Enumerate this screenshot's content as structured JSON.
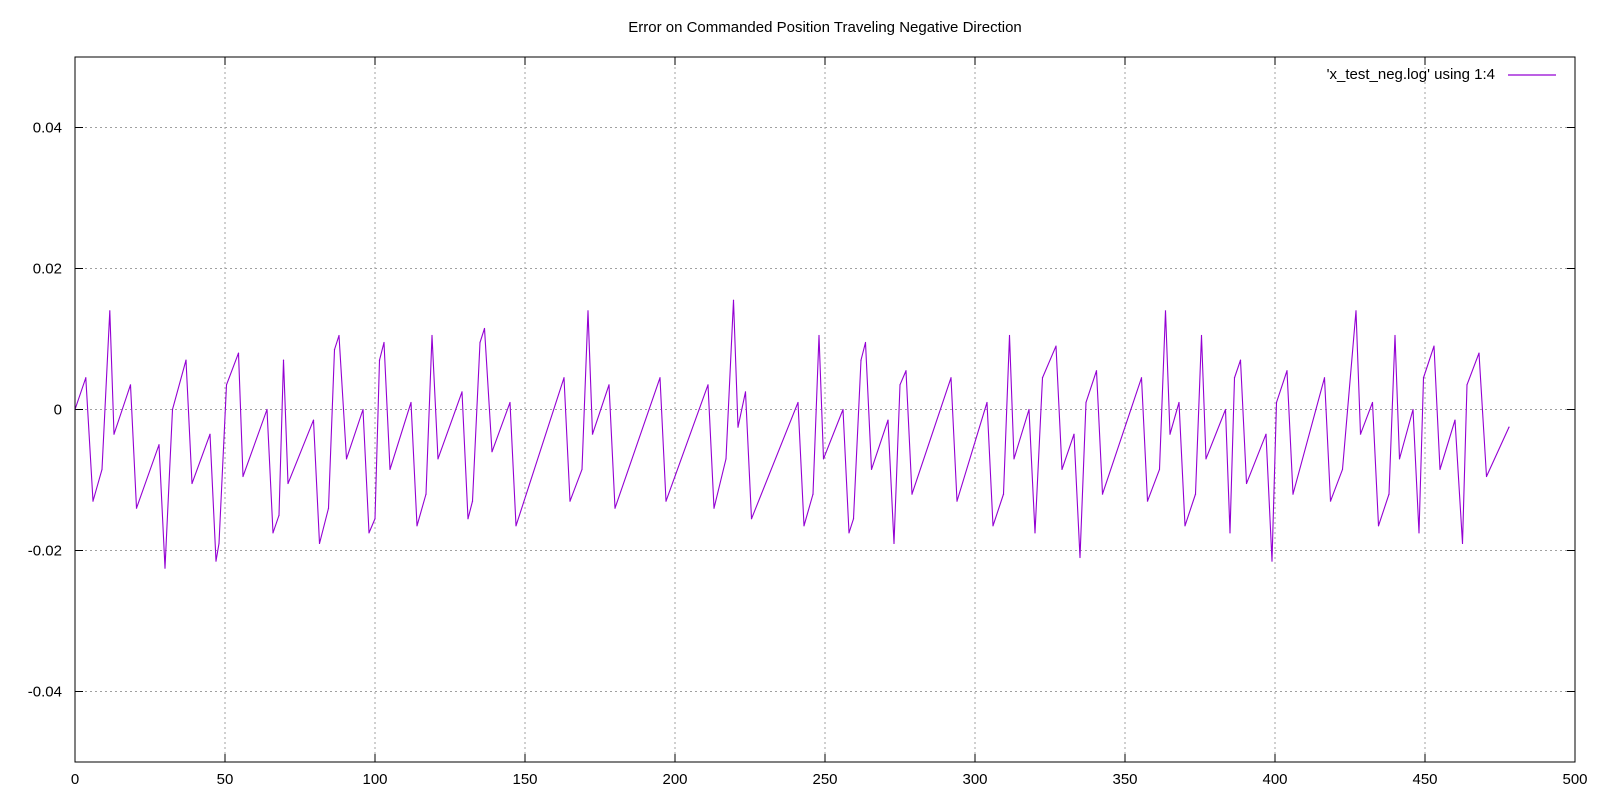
{
  "chart_data": {
    "type": "line",
    "title": "Error on Commanded Position Traveling Negative Direction",
    "xlabel": "",
    "ylabel": "",
    "xlim": [
      0,
      500
    ],
    "ylim": [
      -0.05,
      0.05
    ],
    "x_ticks": [
      0,
      50,
      100,
      150,
      200,
      250,
      300,
      350,
      400,
      450,
      500
    ],
    "x_tick_labels": [
      "0",
      "50",
      "100",
      "150",
      "200",
      "250",
      "300",
      "350",
      "400",
      "450",
      "500"
    ],
    "y_ticks": [
      -0.04,
      -0.02,
      0,
      0.02,
      0.04
    ],
    "y_tick_labels": [
      "-0.04",
      "-0.02",
      "0",
      "0.02",
      "0.04"
    ],
    "grid": true,
    "legend_position": "top-right",
    "series": [
      {
        "name": "'x_test_neg.log' using 1:4",
        "color": "#9400d3",
        "points": [
          [
            0,
            0.0
          ],
          [
            3.6,
            0.0045
          ],
          [
            6,
            -0.013
          ],
          [
            9,
            -0.0085
          ],
          [
            11.6,
            0.014
          ],
          [
            13,
            -0.0035
          ],
          [
            18.5,
            0.0035
          ],
          [
            20.5,
            -0.014
          ],
          [
            28,
            -0.005
          ],
          [
            30,
            -0.0225
          ],
          [
            32.5,
            0.0
          ],
          [
            37,
            0.007
          ],
          [
            39,
            -0.0105
          ],
          [
            45,
            -0.0035
          ],
          [
            47,
            -0.0215
          ],
          [
            48,
            -0.019
          ],
          [
            50.5,
            0.0035
          ],
          [
            54.5,
            0.008
          ],
          [
            56,
            -0.0095
          ],
          [
            64,
            0.0
          ],
          [
            66,
            -0.0175
          ],
          [
            68,
            -0.015
          ],
          [
            69.5,
            0.007
          ],
          [
            71,
            -0.0105
          ],
          [
            79.5,
            -0.0015
          ],
          [
            81.5,
            -0.019
          ],
          [
            84.5,
            -0.014
          ],
          [
            86.5,
            0.0085
          ],
          [
            88,
            0.0105
          ],
          [
            90.5,
            -0.007
          ],
          [
            96,
            0.0
          ],
          [
            98,
            -0.0175
          ],
          [
            100,
            -0.0155
          ],
          [
            101.5,
            0.007
          ],
          [
            103,
            0.0095
          ],
          [
            105,
            -0.0085
          ],
          [
            112,
            0.001
          ],
          [
            114,
            -0.0165
          ],
          [
            117,
            -0.012
          ],
          [
            119,
            0.0105
          ],
          [
            121,
            -0.007
          ],
          [
            129,
            0.0025
          ],
          [
            131,
            -0.0155
          ],
          [
            132.5,
            -0.013
          ],
          [
            135,
            0.0095
          ],
          [
            136.5,
            0.0115
          ],
          [
            139,
            -0.006
          ],
          [
            145,
            0.001
          ],
          [
            147,
            -0.0165
          ],
          [
            163,
            0.0045
          ],
          [
            165,
            -0.013
          ],
          [
            169,
            -0.0085
          ],
          [
            171,
            0.014
          ],
          [
            172.5,
            -0.0035
          ],
          [
            178,
            0.0035
          ],
          [
            180,
            -0.014
          ],
          [
            195,
            0.0045
          ],
          [
            197,
            -0.013
          ],
          [
            211,
            0.0035
          ],
          [
            213,
            -0.014
          ],
          [
            217,
            -0.007
          ],
          [
            219.5,
            0.0155
          ],
          [
            221,
            -0.0025
          ],
          [
            223.5,
            0.0025
          ],
          [
            225.5,
            -0.0155
          ],
          [
            241,
            0.001
          ],
          [
            243,
            -0.0165
          ],
          [
            246,
            -0.012
          ],
          [
            248,
            0.0105
          ],
          [
            249.5,
            -0.007
          ],
          [
            256,
            0.0
          ],
          [
            258,
            -0.0175
          ],
          [
            259.5,
            -0.0155
          ],
          [
            262,
            0.007
          ],
          [
            263.5,
            0.0095
          ],
          [
            265.5,
            -0.0085
          ],
          [
            271,
            -0.0015
          ],
          [
            273,
            -0.019
          ],
          [
            275,
            0.0035
          ],
          [
            277,
            0.0055
          ],
          [
            279,
            -0.012
          ],
          [
            292,
            0.0045
          ],
          [
            294,
            -0.013
          ],
          [
            304,
            0.001
          ],
          [
            306,
            -0.0165
          ],
          [
            309.5,
            -0.012
          ],
          [
            311.5,
            0.0105
          ],
          [
            313,
            -0.007
          ],
          [
            318,
            0.0
          ],
          [
            320,
            -0.0175
          ],
          [
            322.5,
            0.0045
          ],
          [
            327,
            0.009
          ],
          [
            329,
            -0.0085
          ],
          [
            333,
            -0.0035
          ],
          [
            335,
            -0.021
          ],
          [
            337,
            0.001
          ],
          [
            340.5,
            0.0055
          ],
          [
            342.5,
            -0.012
          ],
          [
            355.5,
            0.0045
          ],
          [
            357.5,
            -0.013
          ],
          [
            361.5,
            -0.0085
          ],
          [
            363.5,
            0.014
          ],
          [
            365,
            -0.0035
          ],
          [
            368,
            0.001
          ],
          [
            370,
            -0.0165
          ],
          [
            373.5,
            -0.012
          ],
          [
            375.5,
            0.0105
          ],
          [
            377,
            -0.007
          ],
          [
            383.5,
            0.0
          ],
          [
            385,
            -0.0175
          ],
          [
            386.5,
            0.0045
          ],
          [
            388.5,
            0.007
          ],
          [
            390.5,
            -0.0105
          ],
          [
            397,
            -0.0035
          ],
          [
            399,
            -0.0215
          ],
          [
            400.5,
            0.001
          ],
          [
            404,
            0.0055
          ],
          [
            406,
            -0.012
          ],
          [
            416.5,
            0.0045
          ],
          [
            418.5,
            -0.013
          ],
          [
            422.5,
            -0.0085
          ],
          [
            427,
            0.014
          ],
          [
            428.5,
            -0.0035
          ],
          [
            432.5,
            0.001
          ],
          [
            434.5,
            -0.0165
          ],
          [
            438,
            -0.012
          ],
          [
            440,
            0.0105
          ],
          [
            441.5,
            -0.007
          ],
          [
            446,
            0.0
          ],
          [
            448,
            -0.0175
          ],
          [
            449.5,
            0.0045
          ],
          [
            453,
            0.009
          ],
          [
            455,
            -0.0085
          ],
          [
            460,
            -0.0015
          ],
          [
            462.5,
            -0.019
          ],
          [
            464,
            0.0035
          ],
          [
            468,
            0.008
          ],
          [
            470.5,
            -0.0095
          ],
          [
            478,
            -0.0025
          ]
        ]
      }
    ]
  }
}
